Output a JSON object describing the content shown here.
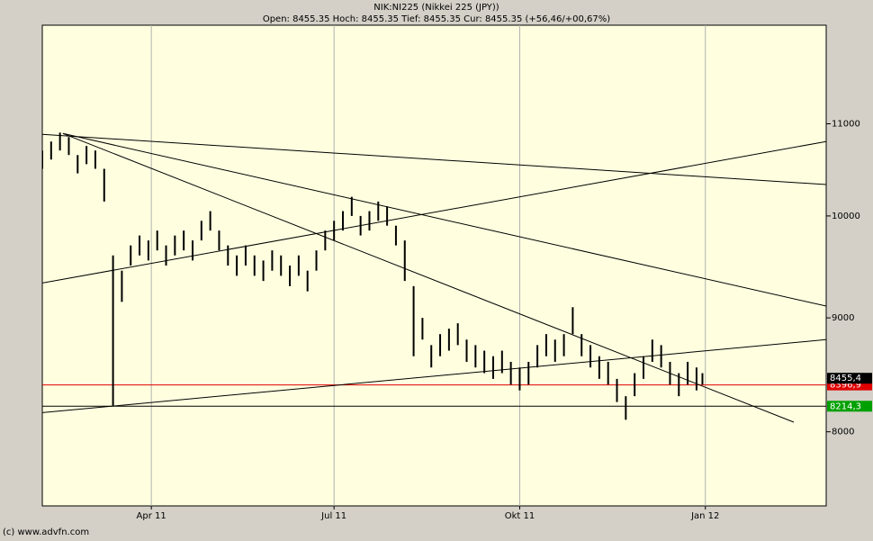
{
  "chart_data": {
    "type": "hilo",
    "title": "NIK:NI225 (Nikkei 225 (JPY))",
    "subtitle": "Open: 8455.35 Hoch: 8455.35 Tief: 8455.35 Cur: 8455.35 (+56,46/+00,67%)",
    "footer": "(c) www.advfn.com",
    "xlim": [
      0,
      266
    ],
    "xticks": [
      {
        "value": 37,
        "label": "Apr 11"
      },
      {
        "value": 99,
        "label": "Jul 11"
      },
      {
        "value": 162,
        "label": "Okt 11"
      },
      {
        "value": 225,
        "label": "Jan 12"
      }
    ],
    "ylim": [
      7410,
      12180
    ],
    "log_scale": true,
    "yticks": [
      8000,
      9000,
      10000,
      11000
    ],
    "grid": true,
    "series": [
      {
        "color": "#000000",
        "x": [
          0,
          3,
          6,
          9,
          12,
          15,
          18,
          21,
          24,
          27,
          30,
          33,
          36,
          39,
          42,
          45,
          48,
          51,
          54,
          57,
          60,
          63,
          66,
          69,
          72,
          75,
          78,
          81,
          84,
          87,
          90,
          93,
          96,
          99,
          102,
          105,
          108,
          111,
          114,
          117,
          120,
          123,
          126,
          129,
          132,
          135,
          138,
          141,
          144,
          147,
          150,
          153,
          156,
          159,
          162,
          165,
          168,
          171,
          174,
          177,
          180,
          183,
          186,
          189,
          192,
          195,
          198,
          201,
          204,
          207,
          210,
          213,
          216,
          219,
          222,
          224
        ],
        "high": [
          10700,
          10800,
          10900,
          10850,
          10650,
          10750,
          10700,
          10500,
          9600,
          9450,
          9700,
          9800,
          9750,
          9850,
          9700,
          9800,
          9850,
          9750,
          9950,
          10050,
          9850,
          9700,
          9600,
          9700,
          9600,
          9550,
          9650,
          9600,
          9500,
          9600,
          9450,
          9650,
          9850,
          9950,
          10050,
          10200,
          10000,
          10050,
          10150,
          10100,
          9900,
          9750,
          9300,
          9000,
          8750,
          8850,
          8900,
          8950,
          8800,
          8750,
          8700,
          8650,
          8700,
          8600,
          8550,
          8600,
          8750,
          8850,
          8800,
          8850,
          9100,
          8850,
          8750,
          8650,
          8600,
          8450,
          8300,
          8500,
          8650,
          8800,
          8750,
          8600,
          8500,
          8600,
          8550,
          8500
        ],
        "low": [
          10500,
          10600,
          10700,
          10650,
          10450,
          10550,
          10500,
          10150,
          8220,
          9150,
          9500,
          9600,
          9550,
          9650,
          9500,
          9600,
          9650,
          9550,
          9750,
          9850,
          9650,
          9500,
          9400,
          9500,
          9400,
          9350,
          9450,
          9400,
          9300,
          9400,
          9250,
          9450,
          9650,
          9750,
          9850,
          10000,
          9800,
          9850,
          9950,
          9900,
          9700,
          9350,
          8650,
          8800,
          8550,
          8650,
          8700,
          8750,
          8600,
          8550,
          8500,
          8450,
          8500,
          8400,
          8350,
          8400,
          8550,
          8650,
          8600,
          8650,
          8850,
          8650,
          8550,
          8450,
          8400,
          8250,
          8100,
          8300,
          8450,
          8600,
          8550,
          8400,
          8300,
          8400,
          8350,
          8400
        ]
      }
    ],
    "trend_lines": [
      {
        "x": [
          0,
          266
        ],
        "y": [
          10880,
          10330
        ]
      },
      {
        "x": [
          0,
          266
        ],
        "y": [
          9330,
          10800
        ]
      },
      {
        "x": [
          7,
          266
        ],
        "y": [
          10890,
          9110
        ]
      },
      {
        "x": [
          7,
          255
        ],
        "y": [
          10890,
          8080
        ]
      },
      {
        "x": [
          0,
          266
        ],
        "y": [
          8160,
          8800
        ]
      }
    ],
    "levels": [
      {
        "value": 8396.9,
        "label": "8396,9",
        "box": "#e00000",
        "line": "#e00000"
      },
      {
        "value": 8455.35,
        "label": "8455,4",
        "box": "#000000"
      },
      {
        "value": 8214.3,
        "label": "8214,3",
        "box": "#00a000",
        "line": "#000000"
      }
    ]
  }
}
